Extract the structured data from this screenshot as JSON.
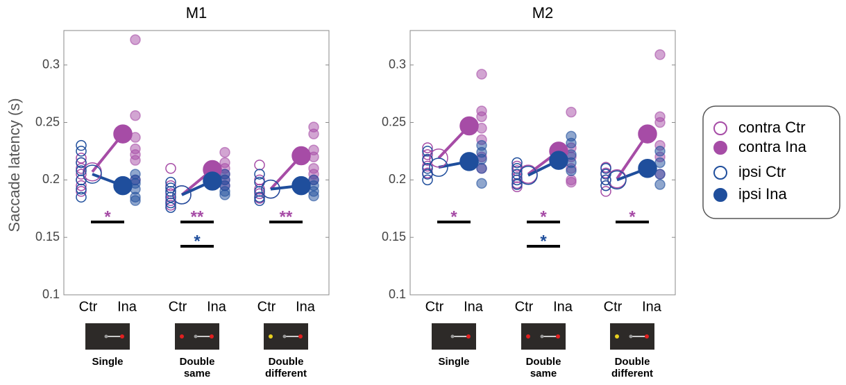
{
  "chart_data": [
    {
      "type": "strip",
      "title": "M1",
      "ylabel": "Saccade latency (s)",
      "categories": [
        "Ctr",
        "Ina"
      ],
      "conditions": [
        "Single",
        "Double same",
        "Double different"
      ],
      "ylim": [
        0.1,
        0.33
      ],
      "yticks": [
        0.1,
        0.15,
        0.2,
        0.25,
        0.3
      ],
      "series": [
        {
          "name": "contra Ctr",
          "color": "#a64ca6",
          "filled": false,
          "category": 0,
          "means": [
            0.207,
            0.187,
            0.192
          ],
          "points": [
            [
              0.219,
              0.215,
              0.21,
              0.205,
              0.2,
              0.195,
              0.19
            ],
            [
              0.21,
              0.195,
              0.188,
              0.182,
              0.178
            ],
            [
              0.213,
              0.2,
              0.192,
              0.188,
              0.184
            ]
          ]
        },
        {
          "name": "contra Ina",
          "color": "#a64ca6",
          "filled": true,
          "category": 1,
          "means": [
            0.24,
            0.209,
            0.221
          ],
          "points": [
            [
              0.322,
              0.256,
              0.237,
              0.227,
              0.222,
              0.217,
              0.2
            ],
            [
              0.224,
              0.215,
              0.21,
              0.205,
              0.2,
              0.195
            ],
            [
              0.246,
              0.24,
              0.226,
              0.22,
              0.21,
              0.205,
              0.2
            ]
          ]
        },
        {
          "name": "ipsi Ctr",
          "color": "#1f4e9c",
          "filled": false,
          "category": 0,
          "means": [
            0.205,
            0.187,
            0.192
          ],
          "points": [
            [
              0.23,
              0.225,
              0.215,
              0.208,
              0.2,
              0.192,
              0.185
            ],
            [
              0.198,
              0.193,
              0.19,
              0.185,
              0.18,
              0.176
            ],
            [
              0.205,
              0.198,
              0.19,
              0.185,
              0.182
            ]
          ]
        },
        {
          "name": "ipsi Ina",
          "color": "#1f4e9c",
          "filled": true,
          "category": 1,
          "means": [
            0.195,
            0.199,
            0.195
          ],
          "points": [
            [
              0.205,
              0.2,
              0.197,
              0.192,
              0.185,
              0.182
            ],
            [
              0.205,
              0.2,
              0.195,
              0.19,
              0.187
            ],
            [
              0.2,
              0.195,
              0.19,
              0.186
            ]
          ]
        }
      ],
      "significance": [
        {
          "condition": 0,
          "label": "*",
          "color": "#a64ca6"
        },
        {
          "condition": 1,
          "label": "**",
          "color": "#a64ca6"
        },
        {
          "condition": 1,
          "label": "*",
          "color": "#1f4e9c"
        },
        {
          "condition": 2,
          "label": "**",
          "color": "#a64ca6"
        }
      ]
    },
    {
      "type": "strip",
      "title": "M2",
      "categories": [
        "Ctr",
        "Ina"
      ],
      "conditions": [
        "Single",
        "Double same",
        "Double different"
      ],
      "ylim": [
        0.1,
        0.33
      ],
      "yticks": [
        0.1,
        0.15,
        0.2,
        0.25,
        0.3
      ],
      "legend": "right",
      "series": [
        {
          "name": "contra Ctr",
          "color": "#a64ca6",
          "filled": false,
          "category": 0,
          "means": [
            0.219,
            0.205,
            0.201
          ],
          "points": [
            [
              0.228,
              0.222,
              0.217,
              0.212,
              0.206
            ],
            [
              0.212,
              0.208,
              0.202,
              0.197,
              0.194
            ],
            [
              0.211,
              0.206,
              0.2,
              0.195,
              0.19
            ]
          ]
        },
        {
          "name": "contra Ina",
          "color": "#a64ca6",
          "filled": true,
          "category": 1,
          "means": [
            0.247,
            0.225,
            0.24
          ],
          "points": [
            [
              0.292,
              0.26,
              0.255,
              0.245,
              0.235,
              0.22,
              0.21
            ],
            [
              0.259,
              0.228,
              0.22,
              0.21,
              0.2,
              0.198
            ],
            [
              0.309,
              0.255,
              0.25,
              0.23,
              0.22,
              0.205
            ]
          ]
        },
        {
          "name": "ipsi Ctr",
          "color": "#1f4e9c",
          "filled": false,
          "category": 0,
          "means": [
            0.211,
            0.204,
            0.2
          ],
          "points": [
            [
              0.225,
              0.218,
              0.21,
              0.205,
              0.2
            ],
            [
              0.215,
              0.21,
              0.205,
              0.2,
              0.196
            ],
            [
              0.21,
              0.205,
              0.2,
              0.195
            ]
          ]
        },
        {
          "name": "ipsi Ina",
          "color": "#1f4e9c",
          "filled": true,
          "category": 1,
          "means": [
            0.216,
            0.217,
            0.21
          ],
          "points": [
            [
              0.23,
              0.224,
              0.218,
              0.21,
              0.197
            ],
            [
              0.238,
              0.232,
              0.222,
              0.215,
              0.208
            ],
            [
              0.225,
              0.215,
              0.205,
              0.196
            ]
          ]
        }
      ],
      "significance": [
        {
          "condition": 0,
          "label": "*",
          "color": "#a64ca6"
        },
        {
          "condition": 1,
          "label": "*",
          "color": "#a64ca6"
        },
        {
          "condition": 1,
          "label": "*",
          "color": "#1f4e9c"
        },
        {
          "condition": 2,
          "label": "*",
          "color": "#a64ca6"
        }
      ]
    }
  ]
}
